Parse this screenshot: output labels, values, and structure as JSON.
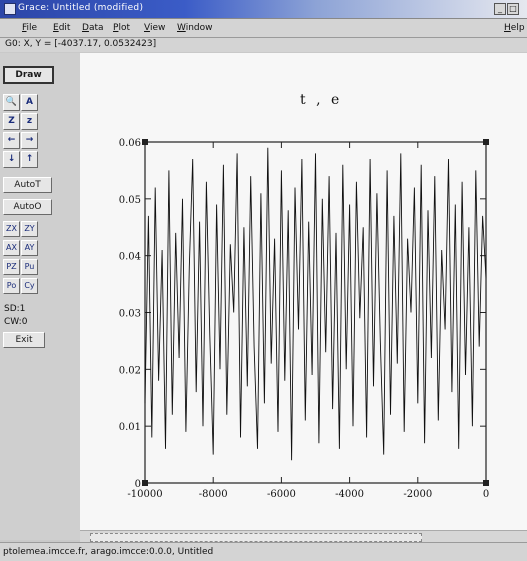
{
  "window": {
    "title": "Grace: Untitled (modified)"
  },
  "menu": {
    "file": "File",
    "edit": "Edit",
    "data": "Data",
    "plot": "Plot",
    "view": "View",
    "window": "Window",
    "help": "Help"
  },
  "coord_readout": "G0: X, Y = [-4037.17, 0.0532423]",
  "tools": {
    "draw": "Draw",
    "autot": "AutoT",
    "autoo": "AutoO",
    "zx": "ZX",
    "zy": "ZY",
    "ax": "AX",
    "ay": "AY",
    "pz": "PZ",
    "pu": "Pu",
    "po": "Po",
    "cy": "Cy",
    "sd": "SD:1",
    "cw": "CW:0",
    "exit": "Exit"
  },
  "icons": {
    "zoom": "🔍",
    "autoscale": "A",
    "zoom_in": "Z",
    "zoom_out": "z",
    "left": "←",
    "right": "→",
    "down": "↓",
    "up": "↑"
  },
  "status": "ptolemea.imcce.fr, arago.imcce:0.0.0, Untitled",
  "chart_data": {
    "type": "line",
    "title": "t , e",
    "xlabel": "",
    "ylabel": "",
    "xlim": [
      -10000,
      0
    ],
    "ylim": [
      0,
      0.06
    ],
    "xticks": [
      -10000,
      -8000,
      -6000,
      -4000,
      -2000,
      0
    ],
    "xtick_labels": [
      "-10000",
      "-8000",
      "-6000",
      "-4000",
      "-2000",
      "0"
    ],
    "yticks": [
      0,
      0.01,
      0.02,
      0.03,
      0.04,
      0.05,
      0.06
    ],
    "ytick_labels": [
      "0",
      "0.01",
      "0.02",
      "0.03",
      "0.04",
      "0.05",
      "0.06"
    ],
    "series": [
      {
        "x": [
          -10000,
          -9900,
          -9800,
          -9700,
          -9600,
          -9500,
          -9400,
          -9300,
          -9200,
          -9100,
          -9000,
          -8900,
          -8800,
          -8700,
          -8600,
          -8500,
          -8400,
          -8300,
          -8200,
          -8100,
          -8000,
          -7900,
          -7800,
          -7700,
          -7600,
          -7500,
          -7400,
          -7300,
          -7200,
          -7100,
          -7000,
          -6900,
          -6800,
          -6700,
          -6600,
          -6500,
          -6400,
          -6300,
          -6200,
          -6100,
          -6000,
          -5900,
          -5800,
          -5700,
          -5600,
          -5500,
          -5400,
          -5300,
          -5200,
          -5100,
          -5000,
          -4900,
          -4800,
          -4700,
          -4600,
          -4500,
          -4400,
          -4300,
          -4200,
          -4100,
          -4000,
          -3900,
          -3800,
          -3700,
          -3600,
          -3500,
          -3400,
          -3300,
          -3200,
          -3100,
          -3000,
          -2900,
          -2800,
          -2700,
          -2600,
          -2500,
          -2400,
          -2300,
          -2200,
          -2100,
          -2000,
          -1900,
          -1800,
          -1700,
          -1600,
          -1500,
          -1400,
          -1300,
          -1200,
          -1100,
          -1000,
          -900,
          -800,
          -700,
          -600,
          -500,
          -400,
          -300,
          -200,
          -100,
          0
        ],
        "y": [
          0.014,
          0.047,
          0.008,
          0.052,
          0.018,
          0.041,
          0.006,
          0.055,
          0.012,
          0.044,
          0.022,
          0.05,
          0.009,
          0.038,
          0.057,
          0.016,
          0.046,
          0.01,
          0.053,
          0.026,
          0.005,
          0.049,
          0.02,
          0.056,
          0.012,
          0.042,
          0.03,
          0.058,
          0.008,
          0.045,
          0.017,
          0.054,
          0.024,
          0.006,
          0.051,
          0.014,
          0.059,
          0.021,
          0.043,
          0.009,
          0.055,
          0.018,
          0.048,
          0.004,
          0.052,
          0.027,
          0.057,
          0.011,
          0.046,
          0.019,
          0.058,
          0.007,
          0.05,
          0.023,
          0.054,
          0.013,
          0.044,
          0.006,
          0.056,
          0.02,
          0.049,
          0.01,
          0.053,
          0.029,
          0.045,
          0.008,
          0.057,
          0.017,
          0.051,
          0.025,
          0.005,
          0.055,
          0.012,
          0.047,
          0.021,
          0.058,
          0.009,
          0.043,
          0.03,
          0.052,
          0.014,
          0.056,
          0.007,
          0.048,
          0.022,
          0.054,
          0.011,
          0.041,
          0.027,
          0.057,
          0.016,
          0.049,
          0.006,
          0.053,
          0.019,
          0.045,
          0.01,
          0.055,
          0.024,
          0.047,
          0.036
        ]
      }
    ]
  }
}
